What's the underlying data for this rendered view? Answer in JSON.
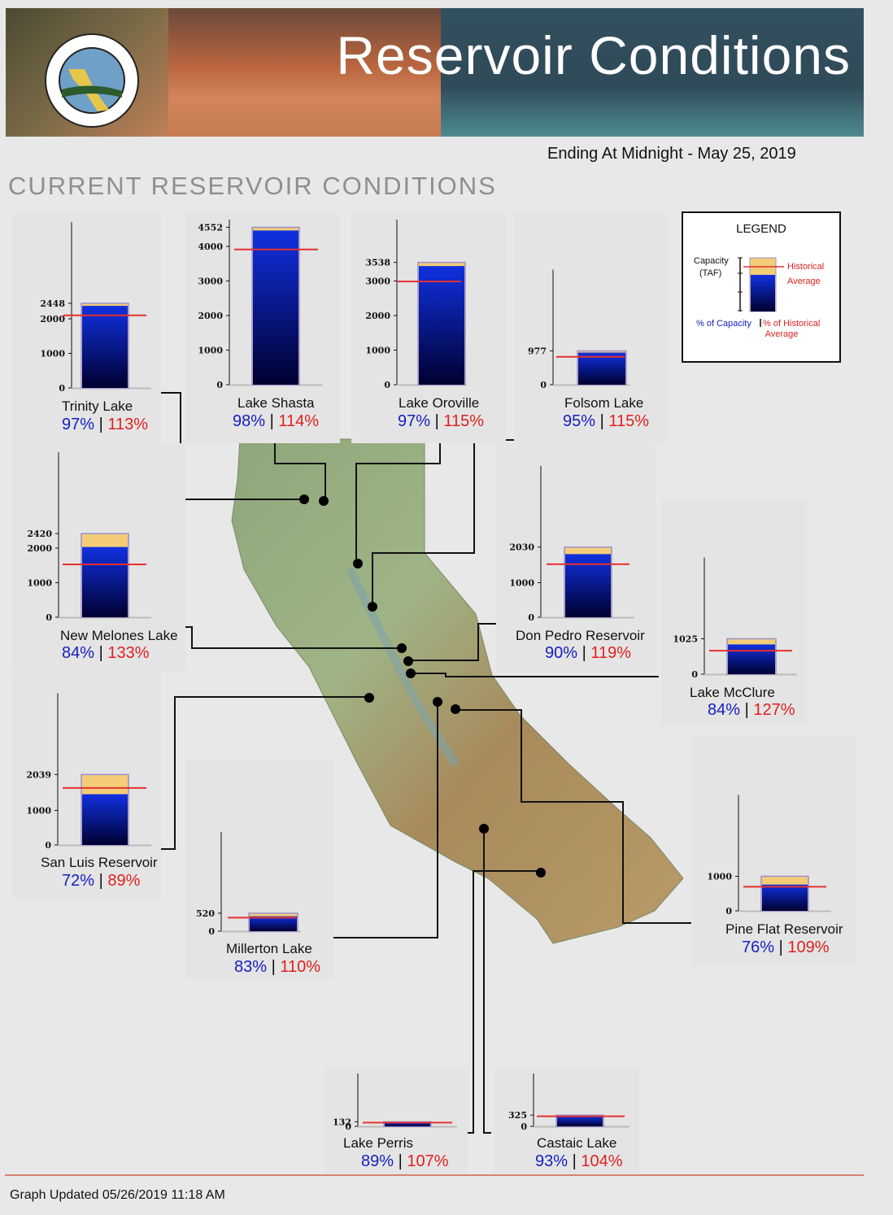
{
  "banner": {
    "title": "Reservoir Conditions",
    "seal": "department-of-water-resources-seal"
  },
  "date_line": "Ending At Midnight - May 25, 2019",
  "section_title": "CURRENT RESERVOIR CONDITIONS",
  "legend": {
    "title": "LEGEND",
    "capacity": "Capacity",
    "taf": "(TAF)",
    "historical": "Historical",
    "average": "Average",
    "pct_capacity": "% of Capacity",
    "pct_historical": "% of Historical",
    "pct_average": "Average"
  },
  "colors": {
    "capacity_fill": "#f4cc78",
    "storage_top": "#1030e0",
    "storage_bottom": "#000030",
    "historical_line": "#e53030",
    "pct_capacity": "#1620c0",
    "pct_historical": "#e02020"
  },
  "footer": "Graph Updated 05/26/2019 11:18 AM",
  "chart_data": [
    {
      "type": "bar",
      "name": "Trinity Lake",
      "capacity": 2448,
      "pct_capacity": 97,
      "pct_historical": 113,
      "ticks": [
        0,
        1000,
        2000,
        2448
      ],
      "pct_capacity_label": "97%",
      "pct_historical_label": "113%"
    },
    {
      "type": "bar",
      "name": "Lake Shasta",
      "capacity": 4552,
      "pct_capacity": 98,
      "pct_historical": 114,
      "ticks": [
        0,
        1000,
        2000,
        3000,
        4000,
        4552
      ],
      "pct_capacity_label": "98%",
      "pct_historical_label": "114%"
    },
    {
      "type": "bar",
      "name": "Lake Oroville",
      "capacity": 3538,
      "pct_capacity": 97,
      "pct_historical": 115,
      "ticks": [
        0,
        1000,
        2000,
        3000,
        3538
      ],
      "pct_capacity_label": "97%",
      "pct_historical_label": "115%"
    },
    {
      "type": "bar",
      "name": "Folsom Lake",
      "capacity": 977,
      "pct_capacity": 95,
      "pct_historical": 115,
      "ticks": [
        0,
        977
      ],
      "pct_capacity_label": "95%",
      "pct_historical_label": "115%"
    },
    {
      "type": "bar",
      "name": "New Melones Lake",
      "capacity": 2420,
      "pct_capacity": 84,
      "pct_historical": 133,
      "ticks": [
        0,
        1000,
        2000,
        2420
      ],
      "pct_capacity_label": "84%",
      "pct_historical_label": "133%"
    },
    {
      "type": "bar",
      "name": "Don Pedro Reservoir",
      "capacity": 2030,
      "pct_capacity": 90,
      "pct_historical": 119,
      "ticks": [
        0,
        1000,
        2030
      ],
      "pct_capacity_label": "90%",
      "pct_historical_label": "119%"
    },
    {
      "type": "bar",
      "name": "Lake McClure",
      "capacity": 1025,
      "pct_capacity": 84,
      "pct_historical": 127,
      "ticks": [
        0,
        1025
      ],
      "pct_capacity_label": "84%",
      "pct_historical_label": "127%"
    },
    {
      "type": "bar",
      "name": "San Luis Reservoir",
      "capacity": 2039,
      "pct_capacity": 72,
      "pct_historical": 89,
      "ticks": [
        0,
        1000,
        2039
      ],
      "pct_capacity_label": "72%",
      "pct_historical_label": "89%"
    },
    {
      "type": "bar",
      "name": "Millerton Lake",
      "capacity": 520,
      "pct_capacity": 83,
      "pct_historical": 110,
      "ticks": [
        0,
        520
      ],
      "pct_capacity_label": "83%",
      "pct_historical_label": "110%"
    },
    {
      "type": "bar",
      "name": "Pine Flat Reservoir",
      "capacity": 1000,
      "pct_capacity": 76,
      "pct_historical": 109,
      "ticks": [
        0,
        1000
      ],
      "pct_capacity_label": "76%",
      "pct_historical_label": "109%"
    },
    {
      "type": "bar",
      "name": "Lake Perris",
      "capacity": 132,
      "pct_capacity": 89,
      "pct_historical": 107,
      "ticks": [
        0,
        132
      ],
      "pct_capacity_label": "89%",
      "pct_historical_label": "107%"
    },
    {
      "type": "bar",
      "name": "Castaic Lake",
      "capacity": 325,
      "pct_capacity": 93,
      "pct_historical": 104,
      "ticks": [
        0,
        325
      ],
      "pct_capacity_label": "93%",
      "pct_historical_label": "104%"
    }
  ]
}
